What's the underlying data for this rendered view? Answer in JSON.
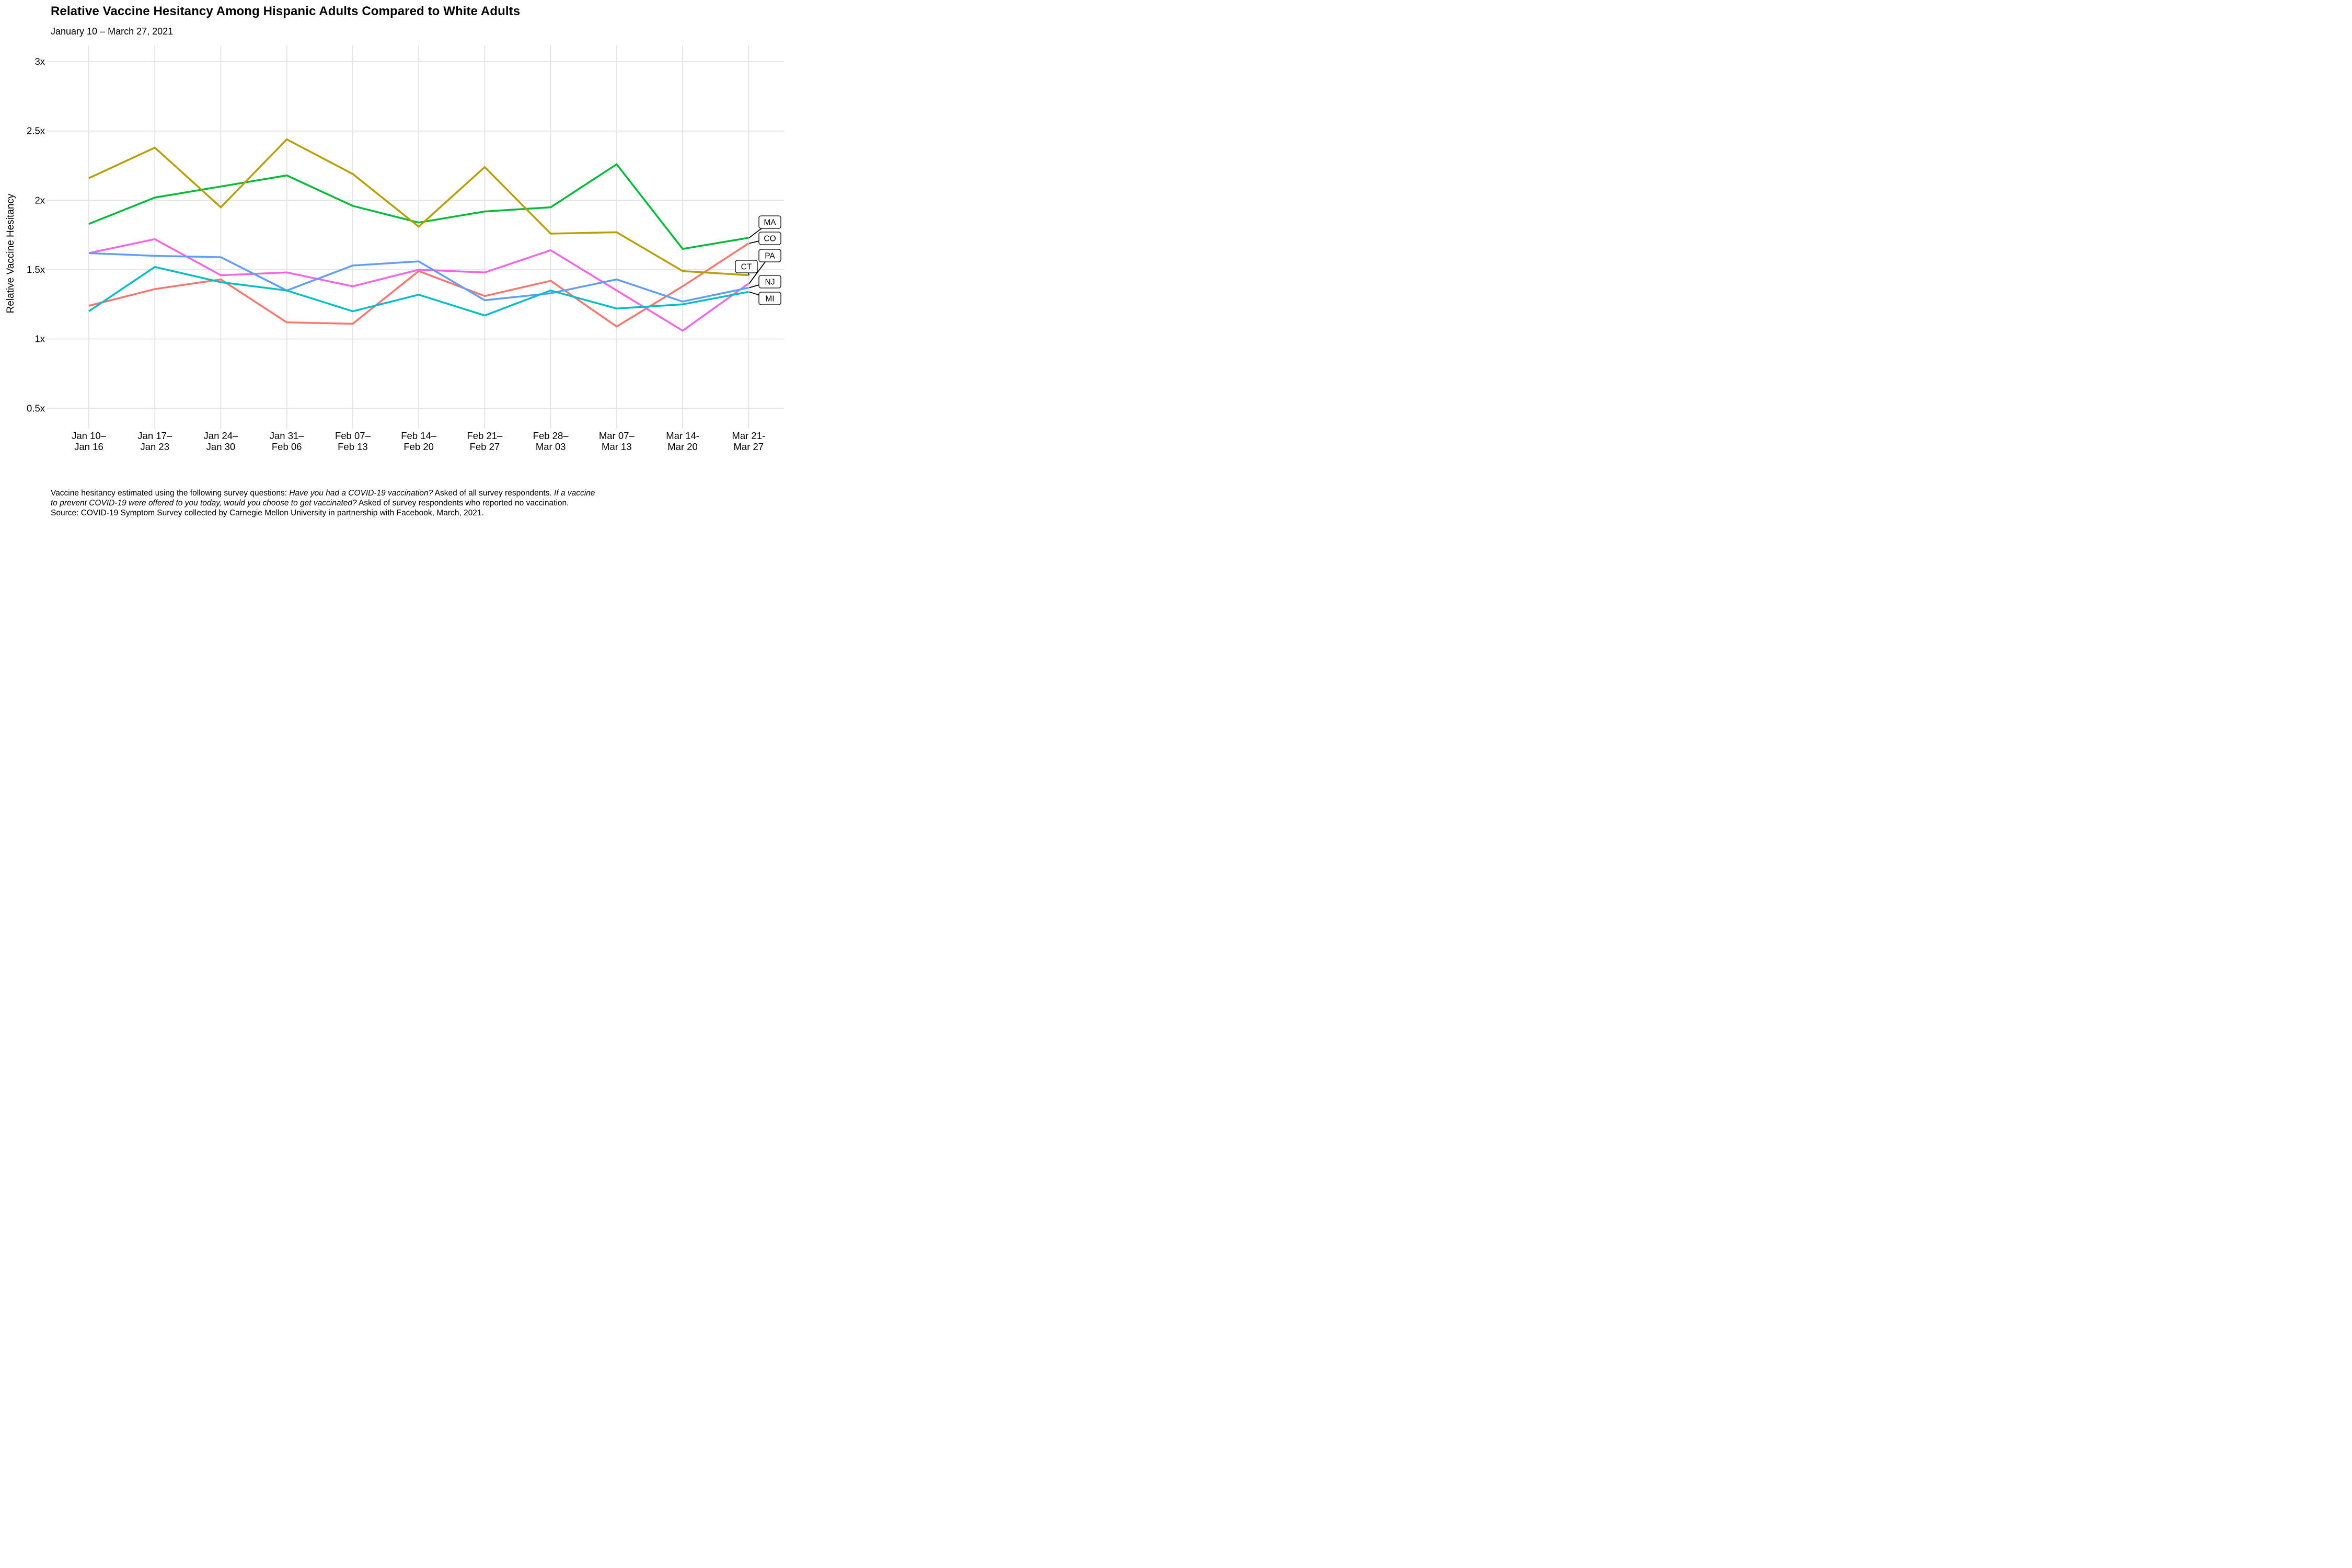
{
  "title": "Relative Vaccine Hesitancy Among Hispanic Adults Compared to White Adults",
  "subtitle": "January 10 – March 27, 2021",
  "y_axis_title": "Relative Vaccine Hesitancy",
  "chart_data": {
    "type": "line",
    "title": "Relative Vaccine Hesitancy Among Hispanic Adults Compared to White Adults",
    "subtitle": "January 10 – March 27, 2021",
    "xlabel": "",
    "ylabel": "Relative Vaccine Hesitancy",
    "grid": true,
    "legend_position": "right-end-labels",
    "categories": [
      "Jan 10–Jan 16",
      "Jan 17–Jan 23",
      "Jan 24–Jan 30",
      "Jan 31–Feb 06",
      "Feb 07–Feb 13",
      "Feb 14–Feb 20",
      "Feb 21–Feb 27",
      "Feb 28–Mar 03",
      "Mar 07–Mar 13",
      "Mar 14-Mar 20",
      "Mar 21-Mar 27"
    ],
    "ytick_labels": [
      "0.5x",
      "1x",
      "1.5x",
      "2x",
      "2.5x",
      "3x"
    ],
    "ytick_values": [
      0.5,
      1,
      1.5,
      2,
      2.5,
      3
    ],
    "ylim": [
      0.37,
      3.12
    ],
    "series": [
      {
        "name": "MA",
        "color": "#00BA38",
        "values": [
          1.83,
          2.02,
          2.1,
          2.18,
          1.96,
          1.84,
          1.92,
          1.95,
          2.26,
          1.65,
          1.73
        ]
      },
      {
        "name": "CO",
        "color": "#F8766D",
        "values": [
          1.24,
          1.36,
          1.43,
          1.12,
          1.11,
          1.49,
          1.31,
          1.42,
          1.09,
          1.38,
          1.69
        ]
      },
      {
        "name": "PA",
        "color": "#F564E3",
        "values": [
          1.62,
          1.72,
          1.46,
          1.48,
          1.38,
          1.5,
          1.48,
          1.64,
          1.35,
          1.06,
          1.4
        ]
      },
      {
        "name": "CT",
        "color": "#B79F00",
        "values": [
          2.16,
          2.38,
          1.95,
          2.44,
          2.19,
          1.81,
          2.24,
          1.76,
          1.77,
          1.49,
          1.46
        ]
      },
      {
        "name": "NJ",
        "color": "#619CFF",
        "values": [
          1.62,
          1.6,
          1.59,
          1.35,
          1.53,
          1.56,
          1.28,
          1.33,
          1.43,
          1.27,
          1.37
        ]
      },
      {
        "name": "MI",
        "color": "#00BFC4",
        "values": [
          1.2,
          1.52,
          1.41,
          1.35,
          1.2,
          1.32,
          1.17,
          1.35,
          1.22,
          1.25,
          1.34
        ]
      }
    ]
  },
  "footnote": {
    "lines": [
      [
        {
          "text": "Vaccine hesitancy estimated using the following survey questions: ",
          "italic": false
        },
        {
          "text": "Have you had a COVID-19 vaccination?",
          "italic": true
        },
        {
          "text": " Asked of all survey respondents. ",
          "italic": false
        },
        {
          "text": "If a vaccine",
          "italic": true
        }
      ],
      [
        {
          "text": "to prevent COVID-19 were offered to you today, would you choose to get vaccinated?",
          "italic": true
        },
        {
          "text": " Asked of survey respondents who reported no vaccination.",
          "italic": false
        }
      ],
      [
        {
          "text": "Source: COVID-19 Symptom Survey collected by Carnegie Mellon University in partnership with Facebook, March, 2021.",
          "italic": false
        }
      ]
    ]
  }
}
